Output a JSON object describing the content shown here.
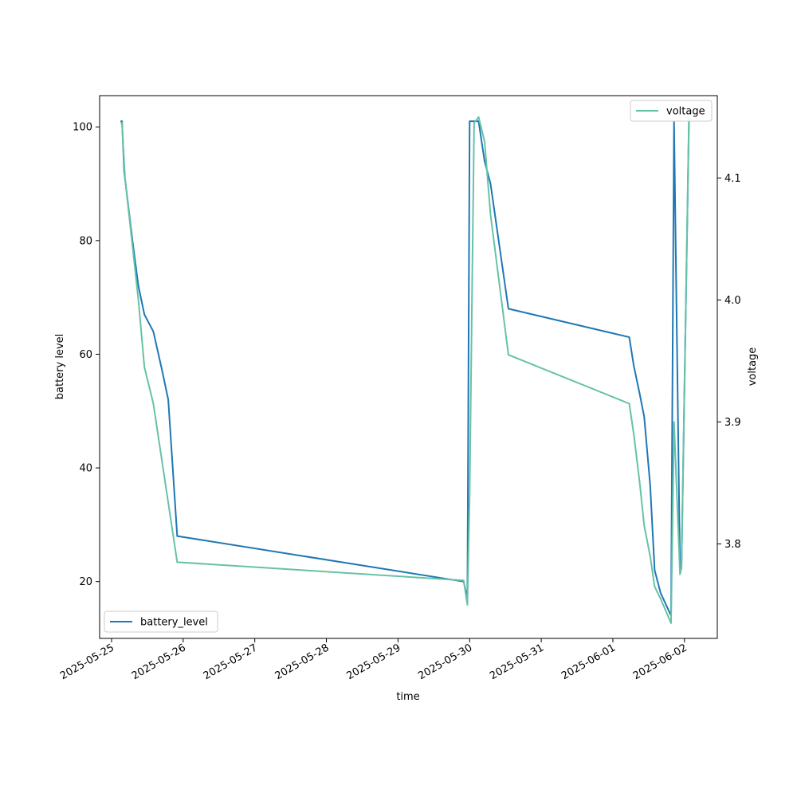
{
  "chart_data": {
    "type": "line",
    "xlabel": "time",
    "ylabel": "battery level",
    "y2label": "voltage",
    "xlim": [
      "2025-05-24T20:00",
      "2025-06-02T11:00"
    ],
    "ylim": [
      10,
      105.5
    ],
    "y2lim": [
      3.7225,
      4.1675
    ],
    "x_ticks": [
      "2025-05-25",
      "2025-05-26",
      "2025-05-27",
      "2025-05-28",
      "2025-05-29",
      "2025-05-30",
      "2025-05-31",
      "2025-06-01",
      "2025-06-02"
    ],
    "y_ticks": [
      20,
      40,
      60,
      80,
      100
    ],
    "y2_ticks": [
      3.8,
      3.9,
      4.0,
      4.1
    ],
    "grid": false,
    "series": [
      {
        "name": "battery_level",
        "axis": "left",
        "color": "#1f77b4",
        "legend": "bottom-left",
        "points": [
          [
            "2025-05-25T03:00",
            101
          ],
          [
            "2025-05-25T03:30",
            101
          ],
          [
            "2025-05-25T04:15",
            92
          ],
          [
            "2025-05-25T07:00",
            80
          ],
          [
            "2025-05-25T09:00",
            72
          ],
          [
            "2025-05-25T11:00",
            67
          ],
          [
            "2025-05-25T14:00",
            64
          ],
          [
            "2025-05-25T17:00",
            57
          ],
          [
            "2025-05-25T19:00",
            52
          ],
          [
            "2025-05-25T22:00",
            28
          ],
          [
            "2025-05-29T22:00",
            20
          ],
          [
            "2025-05-29T23:15",
            17
          ],
          [
            "2025-05-30T00:00",
            101
          ],
          [
            "2025-05-30T03:00",
            101
          ],
          [
            "2025-05-30T05:00",
            94
          ],
          [
            "2025-05-30T07:00",
            90
          ],
          [
            "2025-05-30T13:00",
            68
          ],
          [
            "2025-06-01T05:30",
            63
          ],
          [
            "2025-06-01T07:00",
            58
          ],
          [
            "2025-06-01T09:00",
            53
          ],
          [
            "2025-06-01T10:30",
            49
          ],
          [
            "2025-06-01T12:30",
            37
          ],
          [
            "2025-06-01T14:00",
            22
          ],
          [
            "2025-06-01T16:00",
            18
          ],
          [
            "2025-06-01T19:30",
            14
          ],
          [
            "2025-06-01T20:30",
            101
          ],
          [
            "2025-06-01T22:30",
            22
          ],
          [
            "2025-06-01T23:00",
            23
          ],
          [
            "2025-06-02T01:30",
            101
          ]
        ]
      },
      {
        "name": "voltage",
        "axis": "right",
        "color": "#66c2a5",
        "legend": "top-right",
        "points": [
          [
            "2025-05-25T03:00",
            4.145
          ],
          [
            "2025-05-25T03:30",
            4.145
          ],
          [
            "2025-05-25T04:30",
            4.1
          ],
          [
            "2025-05-25T09:00",
            4.0
          ],
          [
            "2025-05-25T11:00",
            3.945
          ],
          [
            "2025-05-25T14:00",
            3.915
          ],
          [
            "2025-05-25T22:00",
            3.785
          ],
          [
            "2025-05-29T22:00",
            3.77
          ],
          [
            "2025-05-29T23:15",
            3.75
          ],
          [
            "2025-05-30T00:00",
            3.84
          ],
          [
            "2025-05-30T01:30",
            4.145
          ],
          [
            "2025-05-30T03:00",
            4.15
          ],
          [
            "2025-05-30T05:00",
            4.13
          ],
          [
            "2025-05-30T07:00",
            4.07
          ],
          [
            "2025-05-30T13:00",
            3.955
          ],
          [
            "2025-06-01T05:30",
            3.915
          ],
          [
            "2025-06-01T07:00",
            3.89
          ],
          [
            "2025-06-01T09:00",
            3.85
          ],
          [
            "2025-06-01T10:30",
            3.815
          ],
          [
            "2025-06-01T12:30",
            3.79
          ],
          [
            "2025-06-01T14:00",
            3.765
          ],
          [
            "2025-06-01T16:00",
            3.755
          ],
          [
            "2025-06-01T19:30",
            3.735
          ],
          [
            "2025-06-01T20:30",
            3.9
          ],
          [
            "2025-06-01T22:30",
            3.775
          ],
          [
            "2025-06-01T23:00",
            3.78
          ],
          [
            "2025-06-02T01:30",
            4.15
          ]
        ]
      }
    ]
  }
}
